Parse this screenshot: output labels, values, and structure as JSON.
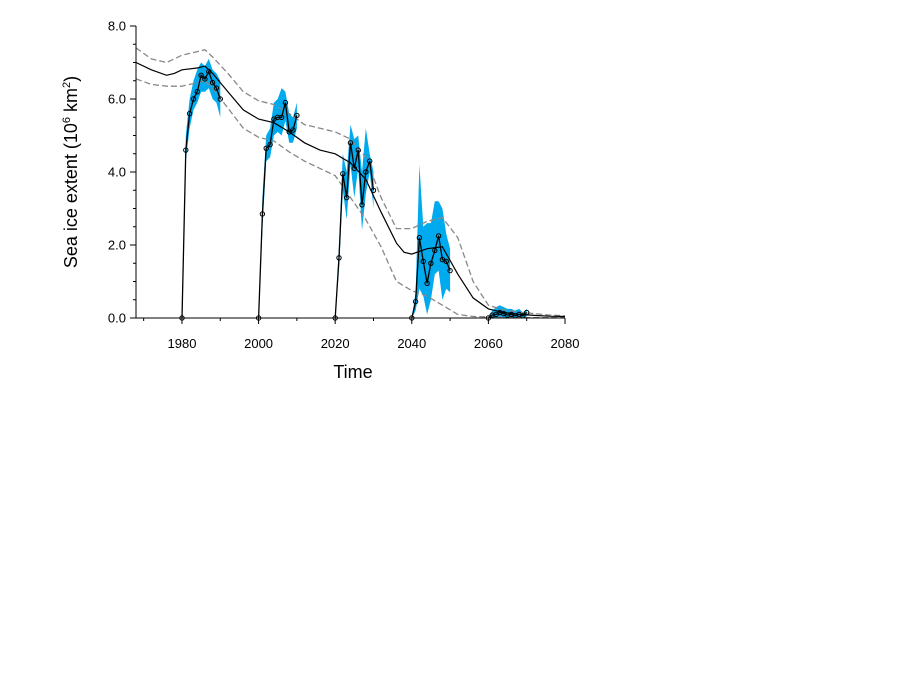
{
  "chart_data": {
    "type": "line",
    "xlabel": "Time",
    "ylabel_text": "Sea ice extent (10",
    "ylabel_sup1": "6",
    "ylabel_mid": " km",
    "ylabel_sup2": "2",
    "ylabel_tail": ")",
    "xlim": [
      1968,
      2080
    ],
    "ylim": [
      0,
      8
    ],
    "xticks": [
      1980,
      2000,
      2020,
      2040,
      2060,
      2080
    ],
    "xtick_labels": [
      "1980",
      "2000",
      "2020",
      "2040",
      "2060",
      "2080"
    ],
    "yticks": [
      0,
      2,
      4,
      6,
      8
    ],
    "ytick_labels": [
      "0.0",
      "2.0",
      "4.0",
      "6.0",
      "8.0"
    ],
    "grid": false,
    "colors": {
      "band": "#00aaee",
      "line": "#000000",
      "dashed": "#888888"
    },
    "mean_line": {
      "x": [
        1968,
        1972,
        1976,
        1978,
        1980,
        1984,
        1986,
        1988,
        1992,
        1996,
        2000,
        2004,
        2008,
        2012,
        2016,
        2020,
        2024,
        2028,
        2032,
        2036,
        2038,
        2040,
        2044,
        2048,
        2052,
        2056,
        2060,
        2064,
        2068,
        2072,
        2076,
        2080
      ],
      "y": [
        7.0,
        6.8,
        6.65,
        6.7,
        6.8,
        6.85,
        6.9,
        6.7,
        6.2,
        5.7,
        5.45,
        5.35,
        5.1,
        4.8,
        4.6,
        4.5,
        4.25,
        3.8,
        2.9,
        2.05,
        1.8,
        1.75,
        1.9,
        1.95,
        1.2,
        0.55,
        0.25,
        0.15,
        0.1,
        0.07,
        0.05,
        0.04
      ]
    },
    "upper_bound": {
      "x": [
        1968,
        1972,
        1976,
        1980,
        1984,
        1986,
        1988,
        1992,
        1996,
        2000,
        2004,
        2008,
        2012,
        2016,
        2020,
        2024,
        2028,
        2032,
        2036,
        2040,
        2044,
        2048,
        2052,
        2056,
        2060,
        2064,
        2068,
        2072,
        2076,
        2080
      ],
      "y": [
        7.4,
        7.1,
        7.0,
        7.2,
        7.3,
        7.35,
        7.15,
        6.7,
        6.2,
        5.95,
        5.85,
        5.6,
        5.3,
        5.2,
        5.1,
        4.9,
        4.4,
        3.3,
        2.45,
        2.45,
        2.65,
        2.75,
        2.2,
        1.0,
        0.35,
        0.22,
        0.16,
        0.12,
        0.08,
        0.06
      ]
    },
    "lower_bound": {
      "x": [
        1968,
        1972,
        1976,
        1980,
        1984,
        1986,
        1988,
        1992,
        1996,
        2000,
        2004,
        2008,
        2012,
        2016,
        2020,
        2024,
        2028,
        2032,
        2036,
        2040,
        2044,
        2048,
        2052,
        2056,
        2060,
        2064,
        2068,
        2072,
        2076,
        2080
      ],
      "y": [
        6.55,
        6.4,
        6.35,
        6.35,
        6.45,
        6.5,
        6.3,
        5.75,
        5.2,
        4.95,
        4.85,
        4.55,
        4.3,
        4.1,
        3.9,
        3.3,
        2.7,
        1.95,
        1.0,
        0.75,
        0.6,
        0.35,
        0.1,
        0.04,
        0.03,
        0.02,
        0.01,
        0.01,
        0.01,
        0.01
      ]
    },
    "series": [
      {
        "x": [
          1980,
          1981,
          1982,
          1983,
          1984,
          1985,
          1986,
          1987,
          1988,
          1989,
          1990
        ],
        "y": [
          0.0,
          4.6,
          5.6,
          6.0,
          6.2,
          6.65,
          6.55,
          6.75,
          6.45,
          6.3,
          6.0
        ],
        "upper": [
          0.0,
          5.0,
          6.0,
          6.5,
          6.8,
          7.0,
          6.9,
          7.1,
          6.8,
          6.7,
          6.5
        ],
        "lower": [
          0.0,
          4.3,
          5.2,
          5.7,
          5.9,
          6.2,
          6.2,
          6.3,
          6.0,
          5.9,
          5.5
        ]
      },
      {
        "x": [
          2000,
          2001,
          2002,
          2003,
          2004,
          2005,
          2006,
          2007,
          2008,
          2009,
          2010
        ],
        "y": [
          0.0,
          2.85,
          4.65,
          4.75,
          5.45,
          5.5,
          5.5,
          5.9,
          5.1,
          5.15,
          5.55
        ],
        "upper": [
          0.0,
          3.3,
          5.0,
          5.2,
          5.9,
          6.0,
          6.3,
          6.2,
          5.6,
          5.5,
          5.9
        ],
        "lower": [
          0.0,
          2.4,
          4.3,
          4.4,
          5.0,
          5.1,
          5.0,
          5.4,
          4.8,
          4.8,
          5.2
        ]
      },
      {
        "x": [
          2020,
          2021,
          2022,
          2023,
          2024,
          2025,
          2026,
          2027,
          2028,
          2029,
          2030
        ],
        "y": [
          0.0,
          1.65,
          3.95,
          3.3,
          4.8,
          4.1,
          4.6,
          3.1,
          4.0,
          4.3,
          3.5
        ],
        "upper": [
          0.0,
          2.0,
          4.5,
          4.0,
          5.3,
          4.9,
          5.0,
          4.0,
          5.2,
          4.5,
          4.0
        ],
        "lower": [
          0.0,
          1.3,
          3.5,
          2.7,
          4.2,
          3.3,
          4.1,
          2.4,
          3.4,
          4.0,
          3.0
        ]
      },
      {
        "x": [
          2040,
          2041,
          2042,
          2043,
          2044,
          2045,
          2046,
          2047,
          2048,
          2049,
          2050
        ],
        "y": [
          0.0,
          0.45,
          2.2,
          1.55,
          0.95,
          1.5,
          1.85,
          2.25,
          1.6,
          1.55,
          1.3
        ],
        "upper": [
          0.0,
          0.7,
          4.2,
          2.5,
          2.6,
          2.6,
          3.2,
          3.2,
          3.0,
          2.3,
          1.9
        ],
        "lower": [
          0.0,
          0.2,
          0.8,
          0.6,
          0.1,
          0.5,
          1.2,
          1.3,
          0.5,
          0.8,
          0.7
        ]
      },
      {
        "x": [
          2060,
          2061,
          2062,
          2063,
          2064,
          2065,
          2066,
          2067,
          2068,
          2069,
          2070
        ],
        "y": [
          0.0,
          0.08,
          0.1,
          0.15,
          0.12,
          0.08,
          0.1,
          0.06,
          0.1,
          0.06,
          0.15
        ],
        "upper": [
          0.0,
          0.2,
          0.3,
          0.35,
          0.3,
          0.25,
          0.25,
          0.2,
          0.25,
          0.15,
          0.25
        ],
        "lower": [
          0.0,
          0.0,
          0.0,
          0.0,
          0.0,
          0.0,
          0.0,
          0.0,
          0.0,
          0.0,
          0.05
        ]
      }
    ]
  }
}
